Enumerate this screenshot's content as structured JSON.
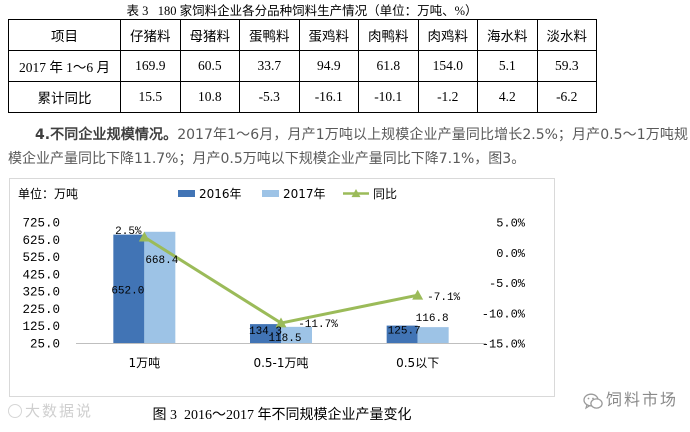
{
  "table": {
    "title": "表 3   180 家饲料企业各分品种饲料生产情况（单位：万吨、%）",
    "headers": [
      "项目",
      "仔猪料",
      "母猪料",
      "蛋鸭料",
      "蛋鸡料",
      "肉鸭料",
      "肉鸡料",
      "海水料",
      "淡水料"
    ],
    "rows": [
      [
        "2017 年 1～6 月",
        "169.9",
        "60.5",
        "33.7",
        "94.9",
        "61.8",
        "154.0",
        "5.1",
        "59.3"
      ],
      [
        "累计同比",
        "15.5",
        "10.8",
        "-5.3",
        "-16.1",
        "-10.1",
        "-1.2",
        "4.2",
        "-6.2"
      ]
    ]
  },
  "paragraph": {
    "lead": "4.不同企业规模情况。",
    "body": "2017年1～6月，月产1万吨以上规模企业产量同比增长2.5%；月产0.5～1万吨规模企业产量同比下降11.7%；月产0.5万吨以下规模企业产量同比下降7.1%，图3。"
  },
  "chart_data": {
    "type": "bar",
    "unit_label": "单位：万吨",
    "categories": [
      "1万吨",
      "0.5-1万吨",
      "0.5以下"
    ],
    "series": [
      {
        "name": "2016年",
        "kind": "bar",
        "axis": "left",
        "values": [
          652.0,
          134.3,
          125.7
        ],
        "labels": [
          "652.0",
          "134.3",
          "125.7"
        ],
        "color": "#4174b5"
      },
      {
        "name": "2017年",
        "kind": "bar",
        "axis": "left",
        "values": [
          668.4,
          118.5,
          116.8
        ],
        "labels": [
          "668.4",
          "118.5",
          "116.8"
        ],
        "color": "#9dc3e6"
      },
      {
        "name": "同比",
        "kind": "line",
        "axis": "right",
        "values": [
          2.5,
          -11.7,
          -7.1
        ],
        "labels": [
          "2.5%",
          "-11.7%",
          "-7.1%"
        ],
        "color": "#9bbb59"
      }
    ],
    "y_left": {
      "min": 25,
      "max": 725,
      "ticks": [
        "725.0",
        "625.0",
        "525.0",
        "425.0",
        "325.0",
        "225.0",
        "125.0",
        "25.0"
      ]
    },
    "y_right": {
      "min": -15,
      "max": 5,
      "ticks": [
        "5.0%",
        "0.0%",
        "-5.0%",
        "-10.0%",
        "-15.0%"
      ]
    },
    "legend": "top",
    "grid": false,
    "caption": "图 3  2016～2017 年不同规模企业产量变化"
  },
  "watermarks": {
    "left_text": "大数据说",
    "right_text": "饲料市场",
    "right_icon": "wechat-icon"
  }
}
